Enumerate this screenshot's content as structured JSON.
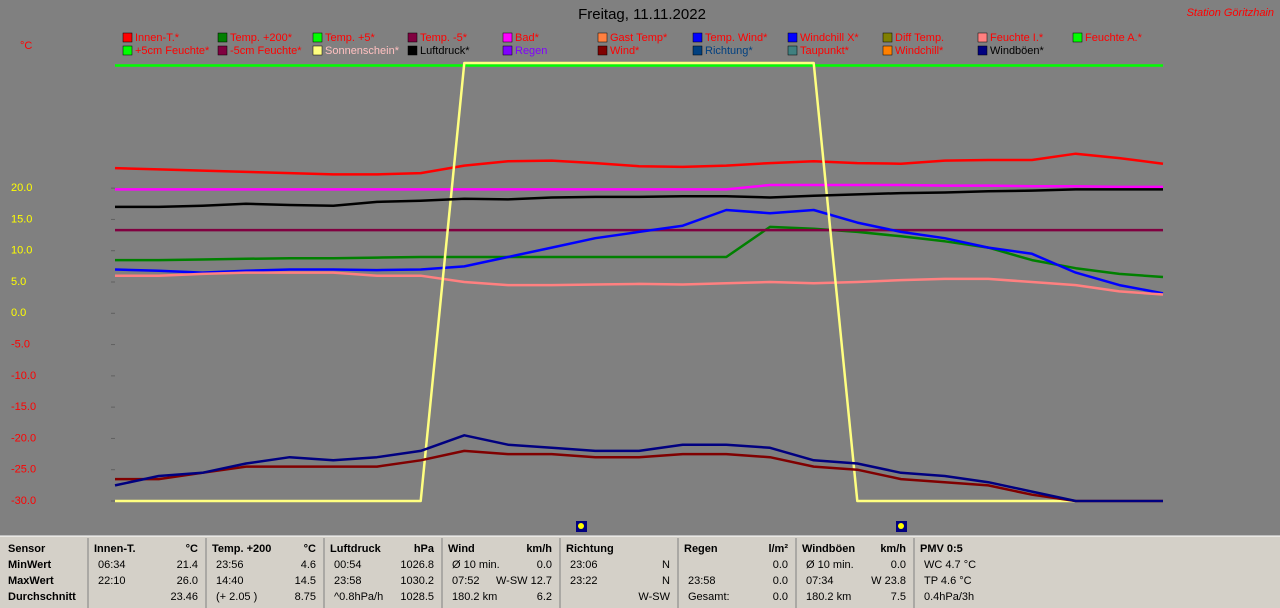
{
  "chart_data": {
    "type": "line",
    "title": "Freitag, 11.11.2022",
    "station": "Station Göritzhain",
    "unit_label": "°C",
    "ylim": [
      -30,
      40
    ],
    "yticks": [
      {
        "value": 20,
        "label": "20.0"
      },
      {
        "value": 15,
        "label": "15.0"
      },
      {
        "value": 10,
        "label": "10.0"
      },
      {
        "value": 5,
        "label": "5.0"
      },
      {
        "value": 0,
        "label": "0.0"
      },
      {
        "value": -5,
        "label": "-5.0"
      },
      {
        "value": -10,
        "label": "-10.0"
      },
      {
        "value": -15,
        "label": "-15.0"
      },
      {
        "value": -20,
        "label": "-20.0"
      },
      {
        "value": -25,
        "label": "-25.0"
      },
      {
        "value": -30,
        "label": "-30.0"
      }
    ],
    "series": [
      {
        "name": "Innen-T.*",
        "color": "#ff0000",
        "label_color": "#ff0000",
        "values": [
          23.2,
          23.0,
          22.8,
          22.6,
          22.4,
          22.2,
          22.2,
          22.4,
          23.6,
          24.3,
          24.4,
          24.0,
          23.5,
          23.4,
          23.6,
          24.0,
          24.3,
          24.0,
          23.9,
          24.4,
          24.5,
          24.5,
          25.5,
          24.8,
          23.9
        ]
      },
      {
        "name": "Temp. +200*",
        "color": "#008000",
        "label_color": "#ff0000",
        "values": [
          8.5,
          8.5,
          8.6,
          8.7,
          8.8,
          8.8,
          8.9,
          9,
          9,
          9,
          9,
          9,
          9,
          9,
          9,
          13.8,
          13.5,
          13,
          12.3,
          11.5,
          10.5,
          8.5,
          7.2,
          6.3,
          5.8
        ]
      },
      {
        "name": "Temp. +5*",
        "color": "#00ff00",
        "label_color": "#ff0000"
      },
      {
        "name": "Temp. -5*",
        "color": "#800040",
        "label_color": "#ff0000",
        "values": [
          13.3,
          13.3,
          13.3,
          13.3,
          13.3,
          13.3,
          13.3,
          13.3,
          13.3,
          13.3,
          13.3,
          13.3,
          13.3,
          13.3,
          13.3,
          13.3,
          13.3,
          13.3,
          13.3,
          13.3,
          13.3,
          13.3,
          13.3,
          13.3,
          13.3
        ]
      },
      {
        "name": "Bad*",
        "color": "#ff00ff",
        "label_color": "#ff0000",
        "values": [
          19.8,
          19.8,
          19.8,
          19.8,
          19.8,
          19.8,
          19.8,
          19.8,
          19.8,
          19.8,
          19.8,
          19.8,
          19.8,
          19.8,
          19.8,
          20.5,
          20.5,
          20.5,
          20.5,
          20.4,
          20.4,
          20.3,
          20.3,
          20.2,
          20.2
        ]
      },
      {
        "name": "Gast Temp*",
        "color": "#ff8040",
        "label_color": "#ff0000"
      },
      {
        "name": "Temp. Wind*",
        "color": "#0000ff",
        "label_color": "#ff0000",
        "values": [
          7,
          6.8,
          6.5,
          6.8,
          7,
          7,
          6.9,
          7,
          7.5,
          9,
          10.5,
          12,
          13,
          14,
          16.5,
          16,
          16.5,
          14.5,
          13,
          12,
          10.5,
          9.5,
          6.5,
          4.5,
          3.2
        ]
      },
      {
        "name": "Windchill X*",
        "color": "#0000ff",
        "label_color": "#ff0000"
      },
      {
        "name": "Diff Temp.",
        "color": "#808000",
        "label_color": "#ff0000"
      },
      {
        "name": "Feuchte I.*",
        "color": "#ff8080",
        "label_color": "#ff0000",
        "values": [
          6,
          6,
          6.3,
          6.5,
          6.5,
          6.5,
          6,
          6,
          5,
          4.5,
          4.5,
          4.6,
          4.7,
          4.6,
          4.8,
          5,
          4.8,
          5,
          5.3,
          5.5,
          5.5,
          5,
          4.5,
          3.5,
          3
        ]
      },
      {
        "name": "Feuchte A.*",
        "color": "#00ff00",
        "label_color": "#ff0000",
        "values": [
          39.6,
          39.6,
          39.6,
          39.6,
          39.6,
          39.6,
          39.6,
          39.6,
          39.6,
          39.6,
          39.6,
          39.6,
          39.6,
          39.6,
          39.6,
          39.6,
          39.6,
          39.6,
          39.6,
          39.6,
          39.6,
          39.6,
          39.6,
          39.6,
          39.6
        ]
      },
      {
        "name": "+5cm Feuchte*",
        "color": "#00ff00",
        "label_color": "#ff0000"
      },
      {
        "name": "-5cm Feuchte*",
        "color": "#800040",
        "label_color": "#ff0000"
      },
      {
        "name": "Sonnenschein*",
        "color": "#ffff80",
        "label_color": "#ffc0c0",
        "values": [
          -30,
          -30,
          -30,
          -30,
          -30,
          -30,
          -30,
          -30,
          40,
          40,
          40,
          40,
          40,
          40,
          40,
          40,
          40,
          -30,
          -30,
          -30,
          -30,
          -30,
          -30,
          -30,
          -30
        ]
      },
      {
        "name": "Luftdruck*",
        "color": "#000000",
        "label_color": "#000000",
        "values": [
          17,
          17,
          17.2,
          17.5,
          17.3,
          17.2,
          17.8,
          18,
          18.3,
          18.2,
          18.5,
          18.6,
          18.6,
          18.7,
          18.7,
          18.5,
          18.8,
          19,
          19.2,
          19.3,
          19.5,
          19.6,
          19.8,
          19.8,
          19.8
        ]
      },
      {
        "name": "Regen",
        "color": "#8000ff",
        "label_color": "#8000ff"
      },
      {
        "name": "Wind*",
        "color": "#800000",
        "label_color": "#ff0000",
        "values": [
          -26.5,
          -26.5,
          -25.5,
          -24.5,
          -24.5,
          -24.5,
          -24.5,
          -23.5,
          -22,
          -22.5,
          -22.5,
          -23,
          -23,
          -22.5,
          -22.5,
          -23,
          -24.5,
          -25,
          -26.5,
          -27,
          -27.5,
          -29,
          -30,
          -30,
          -30
        ]
      },
      {
        "name": "Richtung*",
        "color": "#004080",
        "label_color": "#004080"
      },
      {
        "name": "Taupunkt*",
        "color": "#408080",
        "label_color": "#ff0000"
      },
      {
        "name": "Windchill*",
        "color": "#ff8000",
        "label_color": "#ff0000"
      },
      {
        "name": "Windböen*",
        "color": "#000080",
        "label_color": "#000000",
        "values": [
          -27.5,
          -26,
          -25.5,
          -24,
          -23,
          -23.5,
          -23,
          -22,
          -19.5,
          -21,
          -21.5,
          -22,
          -22,
          -21,
          -21,
          -21.5,
          -23.5,
          -24,
          -25.5,
          -26,
          -27,
          -28.5,
          -30,
          -30,
          -30
        ]
      }
    ]
  },
  "table": {
    "row_labels": [
      "Sensor",
      "MinWert",
      "MaxWert",
      "Durchschnitt"
    ],
    "groups": [
      {
        "name": "Innen-T.",
        "unit": "°C",
        "rows": [
          {
            "time": "06:34",
            "value": "21.4"
          },
          {
            "time": "22:10",
            "value": "26.0"
          },
          {
            "value": "23.46"
          }
        ]
      },
      {
        "name": "Temp. +200",
        "unit": "°C",
        "rows": [
          {
            "time": "23:56",
            "value": "4.6"
          },
          {
            "time": "14:40",
            "value": "14.5"
          },
          {
            "time": "(+ 2.05 )",
            "value": "8.75"
          }
        ]
      },
      {
        "name": "Luftdruck",
        "unit": "hPa",
        "rows": [
          {
            "time": "00:54",
            "value": "1026.8"
          },
          {
            "time": "23:58",
            "value": "1030.2"
          },
          {
            "time": "^0.8hPa/h",
            "value": "1028.5"
          }
        ]
      },
      {
        "name": "Wind",
        "unit": "km/h",
        "rows": [
          {
            "time": "Ø 10 min.",
            "value": "0.0"
          },
          {
            "time": "07:52",
            "value": "W-SW 12.7"
          },
          {
            "time": "180.2 km",
            "value": "6.2"
          }
        ]
      },
      {
        "name": "Richtung",
        "rows": [
          {
            "time": "23:06",
            "value": "N"
          },
          {
            "time": "23:22",
            "value": "N"
          },
          {
            "value": "W-SW"
          }
        ]
      },
      {
        "name": "Regen",
        "unit": "l/m²",
        "rows": [
          {
            "value": "0.0"
          },
          {
            "time": "23:58",
            "value": "0.0"
          },
          {
            "time": "Gesamt:",
            "value": "0.0"
          }
        ]
      },
      {
        "name": "Windböen",
        "unit": "km/h",
        "rows": [
          {
            "time": "Ø 10 min.",
            "value": "0.0"
          },
          {
            "time": "07:34",
            "value": "W 23.8"
          },
          {
            "time": "180.2 km",
            "value": "7.5"
          }
        ]
      },
      {
        "name": "PMV 0:5",
        "rows": [
          {
            "time": "WC 4.7 °C"
          },
          {
            "time": "TP 4.6 °C"
          },
          {
            "time": "0.4hPa/3h"
          }
        ]
      }
    ]
  }
}
